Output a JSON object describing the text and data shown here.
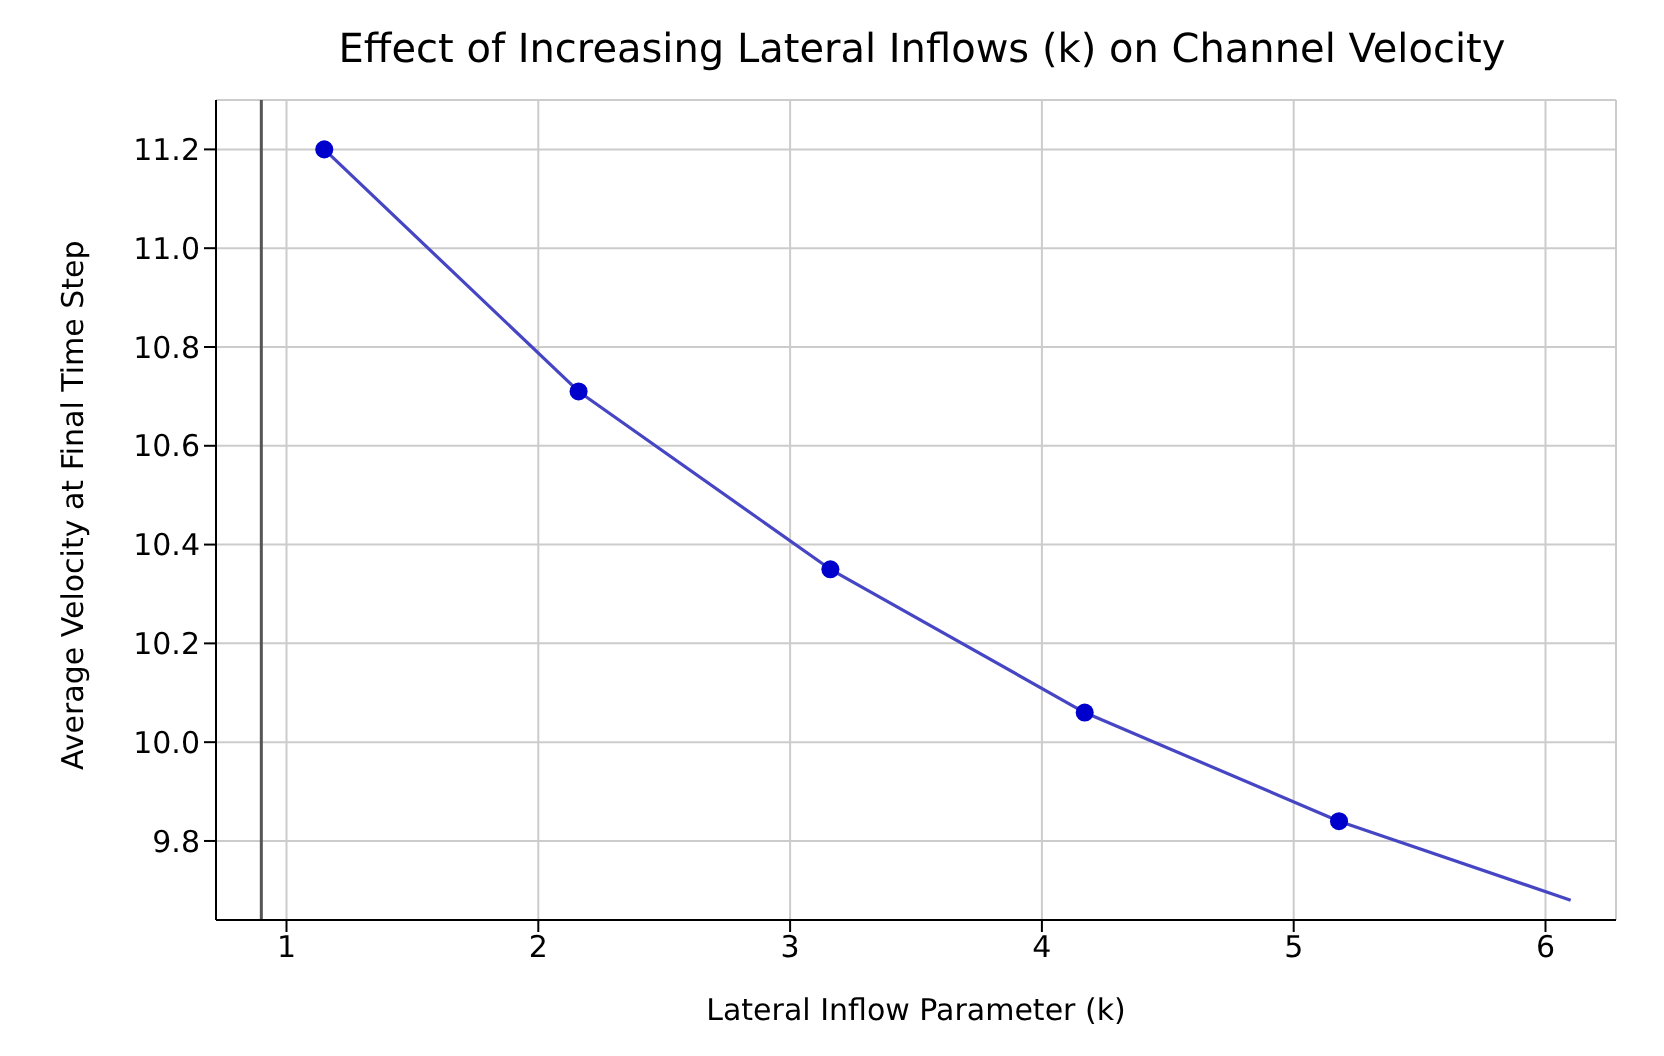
{
  "chart_data": {
    "type": "line",
    "title": "Effect of Increasing Lateral Inflows (k) on Channel Velocity",
    "xlabel": "Lateral Inflow Parameter (k)",
    "ylabel": "Average Velocity at Final Time Step",
    "series": [
      {
        "color": "#4646c4",
        "marker": "none",
        "x": [
          1.15,
          2.16,
          3.16,
          4.17,
          5.18,
          6.1
        ],
        "values": [
          11.2,
          10.71,
          10.35,
          10.06,
          9.84,
          9.68
        ]
      },
      {
        "type": "scatter",
        "color": "#0000cc",
        "marker": "circle",
        "x": [
          1.15,
          2.16,
          3.16,
          4.17,
          5.18
        ],
        "values": [
          11.2,
          10.71,
          10.35,
          10.06,
          9.84
        ]
      }
    ],
    "xlim": [
      0.72,
      6.28
    ],
    "xticks": [
      1,
      2,
      3,
      4,
      5,
      6
    ],
    "ylim": [
      9.64,
      11.3
    ],
    "yticks": [
      9.8,
      {
        "value": 10,
        "label": "10.0"
      },
      10.2,
      10.4,
      10.6,
      10.8,
      {
        "value": 11,
        "label": "11.0"
      },
      11.2
    ],
    "grid": true,
    "ref_lines": [
      {
        "axis": "x",
        "value": 0.9,
        "color": "#555555"
      }
    ]
  }
}
